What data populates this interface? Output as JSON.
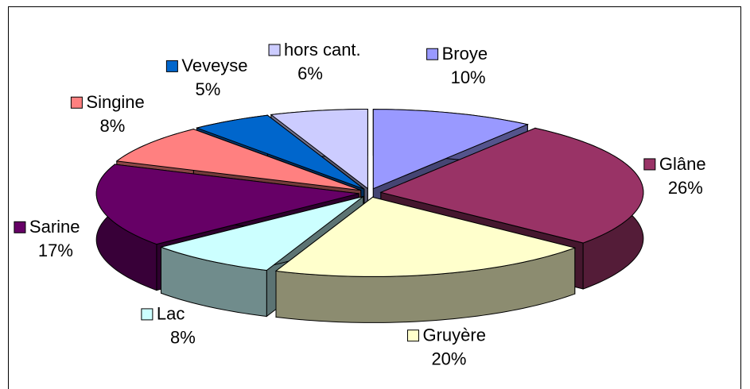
{
  "chart_data": {
    "type": "pie3d",
    "categories": [
      "Broye",
      "Glâne",
      "Gruyère",
      "Lac",
      "Sarine",
      "Singine",
      "Veveyse",
      "hors cant."
    ],
    "values": [
      10,
      26,
      20,
      8,
      17,
      8,
      5,
      6
    ],
    "value_labels": [
      "10%",
      "26%",
      "20%",
      "8%",
      "17%",
      "8%",
      "5%",
      "6%"
    ],
    "colors": [
      "#9999ff",
      "#993366",
      "#ffffcc",
      "#ccffff",
      "#660066",
      "#ff8080",
      "#0066cc",
      "#ccccff"
    ]
  }
}
